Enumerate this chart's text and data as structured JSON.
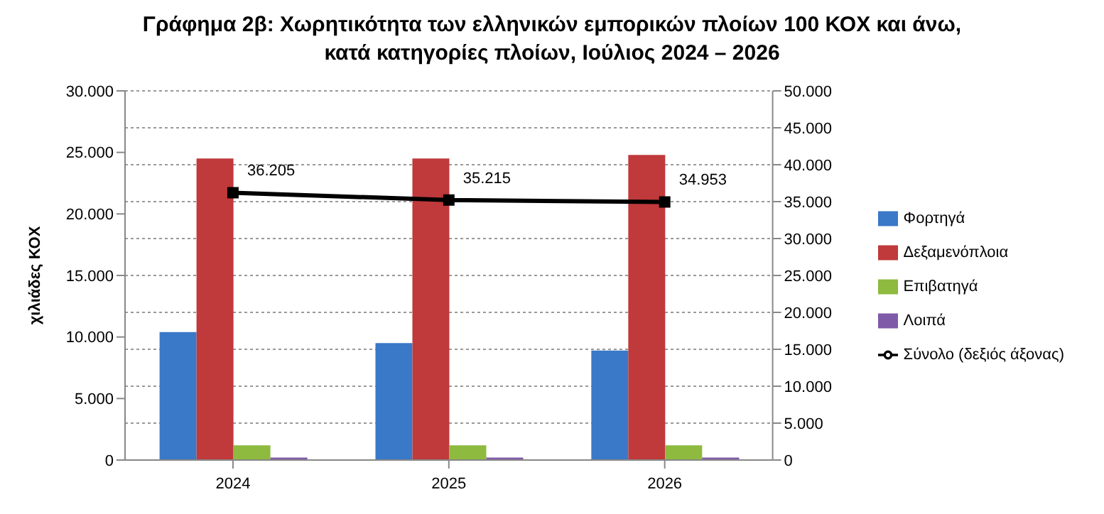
{
  "chart_data": {
    "type": "bar",
    "title": "Γράφημα 2β: Χωρητικότητα των ελληνικών εμπορικών πλοίων 100 ΚΟΧ και άνω,\nκατά κατηγορίες πλοίων, Ιούλιος 2024 – 2026",
    "ylabel": "χιλιάδες ΚΟΧ",
    "categories": [
      "2024",
      "2025",
      "2026"
    ],
    "series": [
      {
        "name": "Φορτηγά",
        "color": "#3a78c8",
        "values": [
          10400,
          9500,
          8900
        ]
      },
      {
        "name": "Δεξαμενόπλοια",
        "color": "#c0393b",
        "values": [
          24500,
          24500,
          24800
        ]
      },
      {
        "name": "Επιβατηγά",
        "color": "#8dba3f",
        "values": [
          1200,
          1200,
          1200
        ]
      },
      {
        "name": "Λοιπά",
        "color": "#7e5aa8",
        "values": [
          200,
          200,
          200
        ]
      },
      {
        "name": "Σύνολο (δεξιός άξονας)",
        "type": "line",
        "axis": "y2",
        "color": "#000000",
        "marker": "square",
        "values": [
          36205,
          35215,
          34953
        ],
        "value_labels": [
          "36.205",
          "35.215",
          "34.953"
        ]
      }
    ],
    "ylim": [
      0,
      30000
    ],
    "yticks": [
      0,
      {
        "value": 5000,
        "label": "5.000"
      },
      {
        "value": 10000,
        "label": "10.000"
      },
      {
        "value": 15000,
        "label": "15.000"
      },
      {
        "value": 20000,
        "label": "20.000"
      },
      {
        "value": 25000,
        "label": "25.000"
      },
      {
        "value": 30000,
        "label": "30.000"
      }
    ],
    "y2lim": [
      0,
      50000
    ],
    "y2ticks": [
      0,
      {
        "value": 5000,
        "label": "5.000"
      },
      {
        "value": 10000,
        "label": "10.000"
      },
      {
        "value": 15000,
        "label": "15.000"
      },
      {
        "value": 20000,
        "label": "20.000"
      },
      {
        "value": 25000,
        "label": "25.000"
      },
      {
        "value": 30000,
        "label": "30.000"
      },
      {
        "value": 35000,
        "label": "35.000"
      },
      {
        "value": 40000,
        "label": "40.000"
      },
      {
        "value": 45000,
        "label": "45.000"
      },
      {
        "value": 50000,
        "label": "50.000"
      }
    ],
    "grid": "y",
    "legend": "right"
  }
}
